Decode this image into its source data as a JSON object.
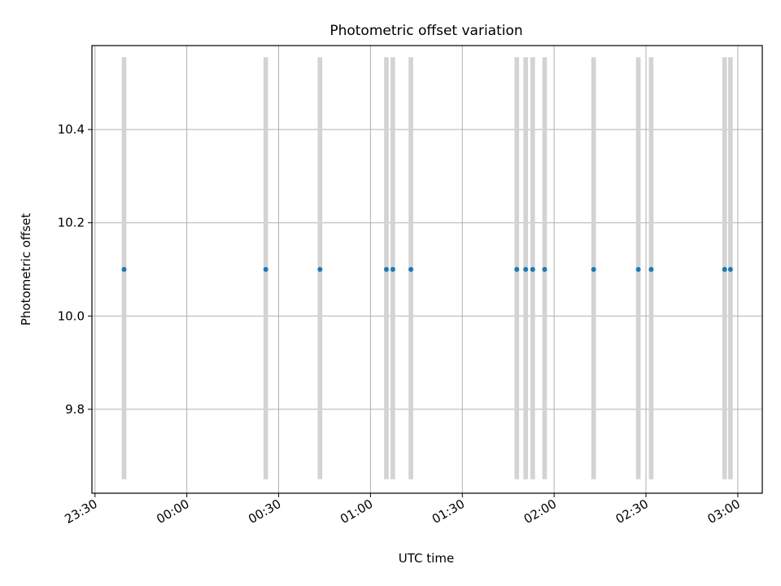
{
  "chart_data": {
    "type": "scatter",
    "title": "Photometric offset variation",
    "xlabel": "UTC time",
    "ylabel": "Photometric offset",
    "grid": true,
    "xlim": [
      "23:29",
      "03:08"
    ],
    "ylim": [
      9.62,
      10.58
    ],
    "x_ticks": [
      "23:30",
      "00:00",
      "00:30",
      "01:00",
      "01:30",
      "02:00",
      "02:30",
      "03:00"
    ],
    "y_ticks": [
      "9.8",
      "10.0",
      "10.2",
      "10.4"
    ],
    "y_tick_values": [
      9.8,
      10.0,
      10.2,
      10.4
    ],
    "points": [
      {
        "x": "23:39.5",
        "y": 10.1
      },
      {
        "x": "00:25.8",
        "y": 10.1
      },
      {
        "x": "00:43.5",
        "y": 10.1
      },
      {
        "x": "01:05.2",
        "y": 10.1
      },
      {
        "x": "01:07.3",
        "y": 10.1
      },
      {
        "x": "01:13.2",
        "y": 10.1
      },
      {
        "x": "01:47.8",
        "y": 10.1
      },
      {
        "x": "01:50.7",
        "y": 10.1
      },
      {
        "x": "01:53.0",
        "y": 10.1
      },
      {
        "x": "01:56.9",
        "y": 10.1
      },
      {
        "x": "02:12.9",
        "y": 10.1
      },
      {
        "x": "02:27.5",
        "y": 10.1
      },
      {
        "x": "02:31.7",
        "y": 10.1
      },
      {
        "x": "02:55.7",
        "y": 10.1
      },
      {
        "x": "02:57.6",
        "y": 10.1
      }
    ],
    "bands": {
      "y_range": [
        9.65,
        10.555
      ],
      "x_half_width_minutes": 0.75,
      "color": "#d3d3d3"
    },
    "point_color": "#1f77b4"
  }
}
